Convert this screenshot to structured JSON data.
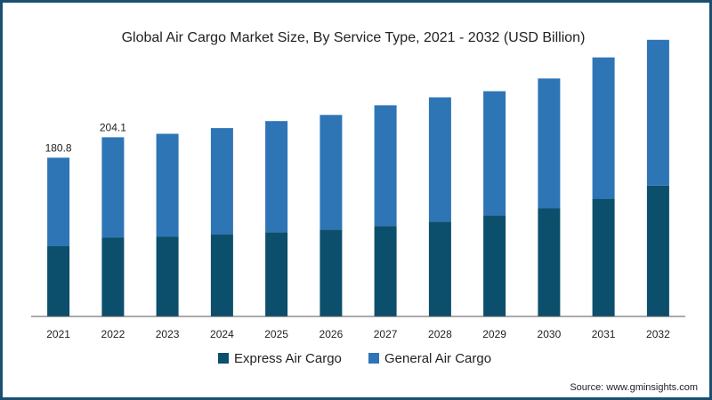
{
  "chart_data": {
    "type": "bar",
    "stacked": true,
    "title": "Global Air Cargo Market Size, By Service Type, 2021 - 2032 (USD Billion)",
    "categories": [
      "2021",
      "2022",
      "2023",
      "2024",
      "2025",
      "2026",
      "2027",
      "2028",
      "2029",
      "2030",
      "2031",
      "2032"
    ],
    "series": [
      {
        "name": "Express Air Cargo",
        "color": "#0b4f6c",
        "values": [
          80,
          90,
          91,
          93.5,
          96,
          99,
          103,
          108,
          115,
          123,
          134,
          149
        ]
      },
      {
        "name": "General Air Cargo",
        "color": "#2e75b6",
        "values": [
          100.8,
          114.1,
          117,
          121,
          126.5,
          130.5,
          137.5,
          141.5,
          141.5,
          148,
          161,
          166
        ]
      }
    ],
    "data_labels": [
      {
        "category": "2021",
        "text": "180.8"
      },
      {
        "category": "2022",
        "text": "204.1"
      }
    ],
    "ylim": [
      0,
      330
    ],
    "grid": false,
    "legend": "bottom-center"
  },
  "source": "Source: www.gminsights.com"
}
